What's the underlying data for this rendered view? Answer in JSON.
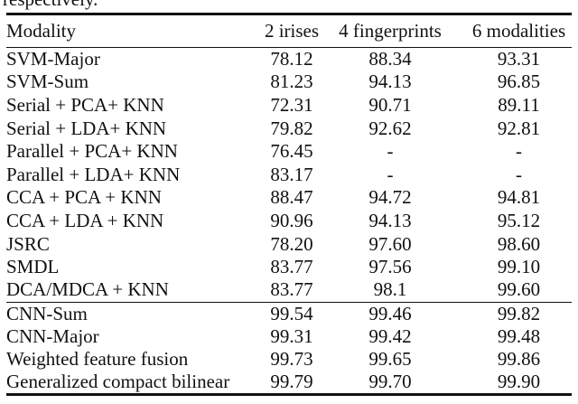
{
  "page": {
    "intro_text": "respectively."
  },
  "colors": {
    "text": "#111111",
    "rule": "#111111",
    "background": "#ffffff"
  },
  "table": {
    "columns": [
      "Modality",
      "2 irises",
      "4 fingerprints",
      "6 modalities"
    ],
    "sections": [
      {
        "name": "classical-methods",
        "rows": [
          {
            "modality": "SVM-Major",
            "values": [
              "78.12",
              "88.34",
              "93.31"
            ]
          },
          {
            "modality": "SVM-Sum",
            "values": [
              "81.23",
              "94.13",
              "96.85"
            ]
          },
          {
            "modality": "Serial + PCA+ KNN",
            "values": [
              "72.31",
              "90.71",
              "89.11"
            ]
          },
          {
            "modality": "Serial + LDA+ KNN",
            "values": [
              "79.82",
              "92.62",
              "92.81"
            ]
          },
          {
            "modality": "Parallel + PCA+ KNN",
            "values": [
              "76.45",
              "-",
              "-"
            ]
          },
          {
            "modality": "Parallel + LDA+ KNN",
            "values": [
              "83.17",
              "-",
              "-"
            ]
          },
          {
            "modality": "CCA + PCA + KNN",
            "values": [
              "88.47",
              "94.72",
              "94.81"
            ]
          },
          {
            "modality": "CCA + LDA + KNN",
            "values": [
              "90.96",
              "94.13",
              "95.12"
            ]
          },
          {
            "modality": "JSRC",
            "values": [
              "78.20",
              "97.60",
              "98.60"
            ]
          },
          {
            "modality": "SMDL",
            "values": [
              "83.77",
              "97.56",
              "99.10"
            ]
          },
          {
            "modality": "DCA/MDCA + KNN",
            "values": [
              "83.77",
              "98.1",
              "99.60"
            ]
          }
        ]
      },
      {
        "name": "cnn-methods",
        "rows": [
          {
            "modality": "CNN-Sum",
            "values": [
              "99.54",
              "99.46",
              "99.82"
            ]
          },
          {
            "modality": "CNN-Major",
            "values": [
              "99.31",
              "99.42",
              "99.48"
            ]
          },
          {
            "modality": "Weighted feature fusion",
            "values": [
              "99.73",
              "99.65",
              "99.86"
            ]
          },
          {
            "modality": "Generalized compact bilinear",
            "values": [
              "99.79",
              "99.70",
              "99.90"
            ]
          }
        ]
      }
    ]
  }
}
